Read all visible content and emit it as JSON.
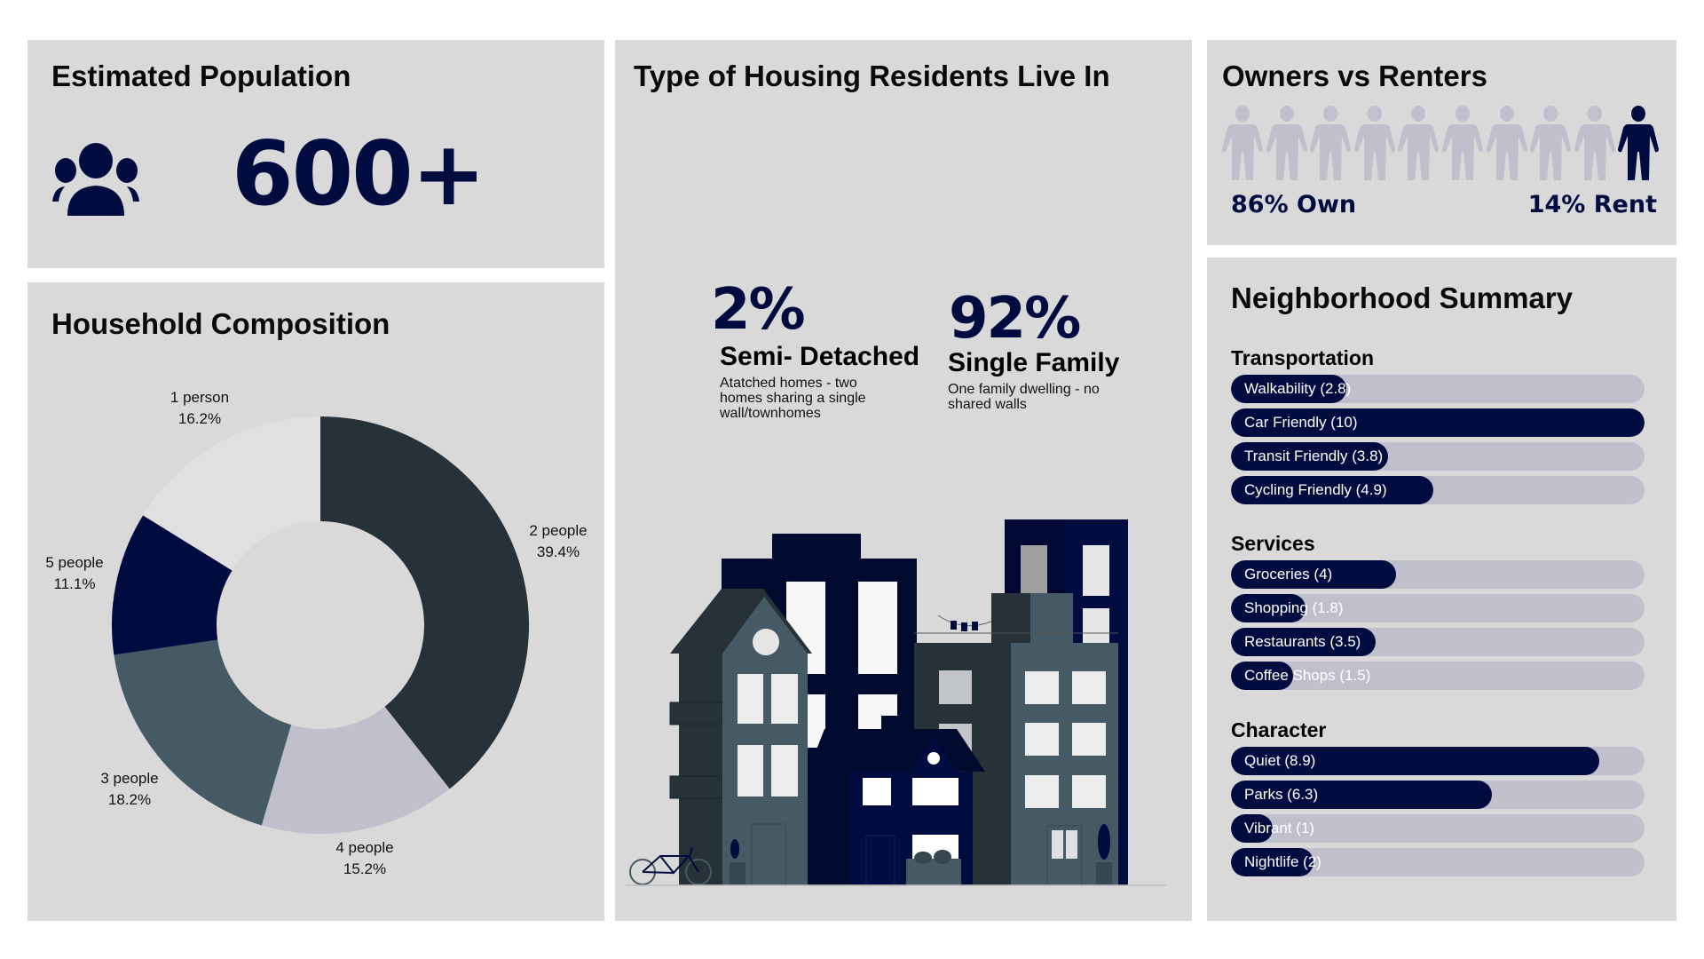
{
  "colors": {
    "navy": "#000b3f",
    "panel": "#d9d9d9",
    "bar_track": "#c0bfcc",
    "person_light": "#c0bfcc"
  },
  "population": {
    "title": "Estimated Population",
    "value": "600+",
    "icon": "people-group-icon"
  },
  "household": {
    "title": "Household Composition",
    "chart_data": {
      "type": "pie",
      "title": "Household Composition",
      "donut": true,
      "slices": [
        {
          "label": "2 people",
          "value": 39.4,
          "display": "39.4%",
          "color": "#263238"
        },
        {
          "label": "4 people",
          "value": 15.2,
          "display": "15.2%",
          "color": "#c0bfcc"
        },
        {
          "label": "3 people",
          "value": 18.2,
          "display": "18.2%",
          "color": "#455a64"
        },
        {
          "label": "5 people",
          "value": 11.1,
          "display": "11.1%",
          "color": "#000b3f"
        },
        {
          "label": "1 person",
          "value": 16.2,
          "display": "16.2%",
          "color": "#e0e0e0"
        }
      ]
    }
  },
  "housing": {
    "title": "Type of Housing Residents Live In",
    "types": [
      {
        "percent": "2%",
        "name": "Semi- Detached",
        "description": "Atatched homes - two homes sharing a single wall/townhomes"
      },
      {
        "percent": "92%",
        "name": "Single Family",
        "description": "One family dwelling - no shared walls"
      }
    ]
  },
  "owners": {
    "title": "Owners vs Renters",
    "own_label": "86% Own",
    "rent_label": "14% Rent",
    "own_percent": 86,
    "rent_percent": 14,
    "icons_total": 10,
    "icons_highlighted": 1
  },
  "summary": {
    "title": "Neighborhood Summary",
    "max": 10,
    "groups": [
      {
        "name": "Transportation",
        "items": [
          {
            "label": "Walkability (2.8)",
            "value": 2.8
          },
          {
            "label": "Car Friendly (10)",
            "value": 10
          },
          {
            "label": "Transit Friendly (3.8)",
            "value": 3.8
          },
          {
            "label": "Cycling Friendly (4.9)",
            "value": 4.9
          }
        ]
      },
      {
        "name": "Services",
        "items": [
          {
            "label": "Groceries (4)",
            "value": 4
          },
          {
            "label": "Shopping (1.8)",
            "value": 1.8
          },
          {
            "label": "Restaurants (3.5)",
            "value": 3.5
          },
          {
            "label": "Coffee Shops (1.5)",
            "value": 1.5
          }
        ]
      },
      {
        "name": "Character",
        "items": [
          {
            "label": "Quiet (8.9)",
            "value": 8.9
          },
          {
            "label": "Parks (6.3)",
            "value": 6.3
          },
          {
            "label": "Vibrant (1)",
            "value": 1
          },
          {
            "label": "Nightlife (2)",
            "value": 2
          }
        ]
      }
    ]
  }
}
